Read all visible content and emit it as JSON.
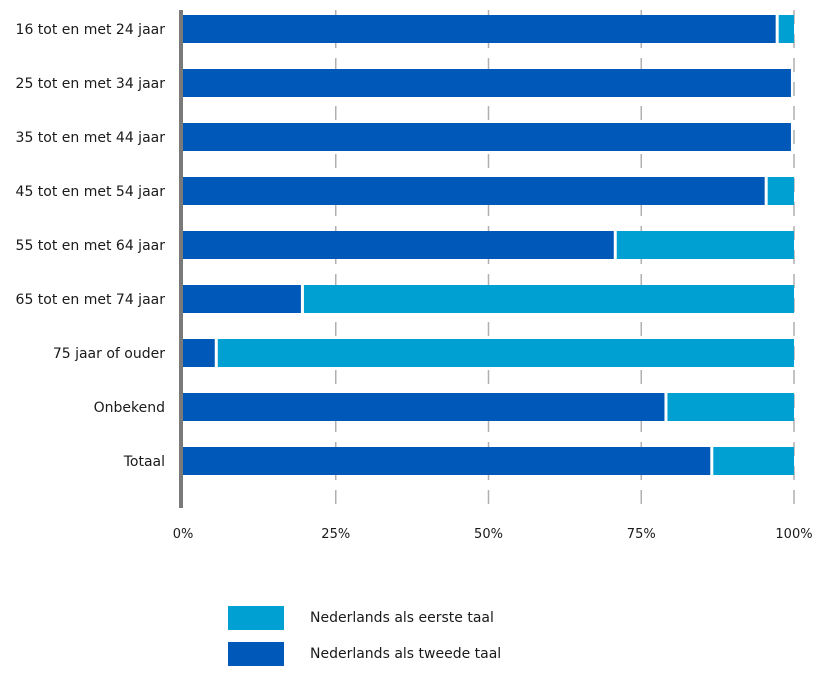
{
  "chart_data": {
    "type": "bar",
    "orientation": "horizontal",
    "stacked": true,
    "percent": true,
    "categories": [
      "16 tot en met 24 jaar",
      "25 tot en met 34 jaar",
      "35 tot en met 44 jaar",
      "45 tot en met 54 jaar",
      "55 tot en met 64 jaar",
      "65 tot en met 74 jaar",
      "75 jaar of ouder",
      "Onbekend",
      "Totaal"
    ],
    "series": [
      {
        "name": "Nederlands als tweede taal",
        "color": "#0058b8",
        "values": [
          97,
          99.5,
          99.5,
          95.2,
          70.5,
          19.3,
          5.2,
          78.8,
          86.3
        ]
      },
      {
        "name": "Nederlands als eerste taal",
        "color": "#00a0d2",
        "values": [
          3,
          0.5,
          0.5,
          4.8,
          29.5,
          80.7,
          94.8,
          21.2,
          13.7
        ]
      }
    ],
    "xlim": [
      0,
      100
    ],
    "xticks": [
      0,
      25,
      50,
      75,
      100
    ],
    "xtick_labels": [
      "0%",
      "25%",
      "50%",
      "75%",
      "100%"
    ],
    "grid": "vertical dashed",
    "legend_position": "bottom",
    "legend_order": [
      "Nederlands als eerste taal",
      "Nederlands als tweede taal"
    ]
  }
}
